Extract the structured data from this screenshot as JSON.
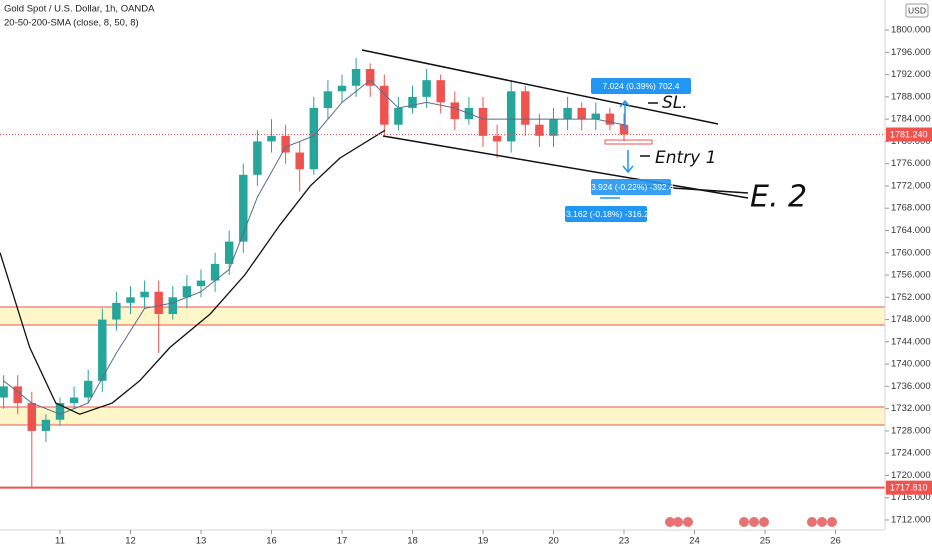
{
  "chart_data": {
    "type": "candlestick",
    "title": "Gold Spot / U.S. Dollar, 1h, OANDA",
    "subtitle": "20-50-200-SMA (close, 8, 50, 8)",
    "currency": "USD",
    "up_color": "#26a69a",
    "down_color": "#ef5350",
    "x": [
      -0.8,
      -0.6,
      -0.4,
      -0.2,
      0,
      0.2,
      0.4,
      0.6,
      0.8,
      1.0,
      1.2,
      1.4,
      1.6,
      1.8,
      2.0,
      2.2,
      2.4,
      2.6,
      2.8,
      3.0,
      3.2,
      3.4,
      3.6,
      3.8,
      4.0,
      4.2,
      4.4,
      4.6,
      4.8,
      5.0,
      5.2,
      5.4,
      5.6,
      5.8,
      6.0,
      6.2,
      6.4,
      6.6,
      6.8,
      7.0,
      7.2,
      7.4,
      7.6,
      7.8,
      8.0
    ],
    "open": [
      1734,
      1736,
      1733,
      1728,
      1730,
      1733,
      1734,
      1737,
      1748,
      1751,
      1752,
      1753,
      1749,
      1752,
      1754,
      1755,
      1758,
      1762,
      1774,
      1780,
      1781,
      1778,
      1775,
      1786,
      1789,
      1790,
      1793,
      1790,
      1783,
      1786,
      1788,
      1791,
      1787,
      1784,
      1786,
      1781,
      1780,
      1789,
      1783,
      1781,
      1784,
      1786,
      1784,
      1785,
      1783
    ],
    "high": [
      1738,
      1738,
      1735,
      1731,
      1734,
      1736,
      1739,
      1750,
      1753,
      1754,
      1755,
      1755,
      1754,
      1756,
      1757,
      1760,
      1764,
      1776,
      1782,
      1784,
      1783,
      1780,
      1788,
      1791,
      1792,
      1795,
      1794,
      1792,
      1788,
      1790,
      1793,
      1792,
      1789,
      1788,
      1788,
      1783,
      1791,
      1790,
      1785,
      1786,
      1788,
      1787,
      1787,
      1786,
      1785
    ],
    "low": [
      1732,
      1731,
      1718,
      1726,
      1729,
      1732,
      1733,
      1735,
      1746,
      1749,
      1750,
      1742,
      1748,
      1750,
      1752,
      1753,
      1756,
      1760,
      1772,
      1778,
      1776,
      1771,
      1774,
      1784,
      1787,
      1788,
      1788,
      1781,
      1782,
      1785,
      1786,
      1785,
      1782,
      1783,
      1779,
      1777,
      1778,
      1781,
      1779,
      1779,
      1782,
      1782,
      1782,
      1782,
      1780
    ],
    "close": [
      1736,
      1733,
      1728,
      1730,
      1733,
      1734,
      1737,
      1748,
      1751,
      1752,
      1753,
      1749,
      1752,
      1754,
      1755,
      1758,
      1762,
      1774,
      1780,
      1781,
      1778,
      1775,
      1786,
      1789,
      1790,
      1793,
      1790,
      1783,
      1786,
      1788,
      1791,
      1787,
      1784,
      1786,
      1781,
      1780,
      1789,
      1783,
      1781,
      1784,
      1786,
      1784,
      1785,
      1783,
      1781.24
    ],
    "overlays": [
      {
        "color": "#5b6b8c",
        "x": [
          -0.8,
          -0.4,
          0,
          0.4,
          0.8,
          1.2,
          1.6,
          2.0,
          2.4,
          2.8,
          3.2,
          3.6,
          4.0,
          4.4,
          4.8,
          5.2,
          5.6,
          6.0,
          6.4,
          6.8,
          7.2,
          7.6,
          8.0
        ],
        "values": [
          1737,
          1733,
          1731,
          1733,
          1742,
          1750,
          1751,
          1753,
          1757,
          1770,
          1779,
          1781,
          1787,
          1791,
          1786,
          1787,
          1786,
          1784,
          1784,
          1784,
          1784,
          1784,
          1783
        ]
      },
      {
        "color": "#111111",
        "x": [
          -0.85,
          -0.43,
          -0.06,
          0.28,
          0.74,
          1.13,
          1.56,
          2.13,
          2.62,
          3.12,
          3.55,
          3.97,
          4.61
        ],
        "values": [
          1760,
          1743,
          1733,
          1731,
          1733,
          1737,
          1743,
          1749,
          1756,
          1765,
          1772,
          1777,
          1782
        ]
      }
    ],
    "price_labels": [
      {
        "value": 1781.24,
        "label": "1781.240"
      },
      {
        "value": 1717.81,
        "label": "1717.810"
      }
    ],
    "measurements": [
      "7.024 (0.39%) 702.4",
      "-3.924 (-0.22%) -392.4",
      "-3.162 (-0.18%) -316.2"
    ],
    "annotations": [
      "SL.",
      "Entry 1",
      "E. 2"
    ],
    "xlim": [
      -0.851,
      11.702
    ],
    "xticks": [
      {
        "value": 0,
        "label": "11"
      },
      {
        "value": 1,
        "label": "12"
      },
      {
        "value": 2,
        "label": "13"
      },
      {
        "value": 3,
        "label": "16"
      },
      {
        "value": 4,
        "label": "17"
      },
      {
        "value": 5,
        "label": "18"
      },
      {
        "value": 6,
        "label": "19"
      },
      {
        "value": 7,
        "label": "20"
      },
      {
        "value": 8,
        "label": "23"
      },
      {
        "value": 9,
        "label": "24"
      },
      {
        "value": 10,
        "label": "25"
      },
      {
        "value": 11,
        "label": "26"
      }
    ],
    "ylim": [
      1710.2,
      1805.4
    ],
    "yticks": [
      {
        "value": 1712,
        "label": "1712.000"
      },
      {
        "value": 1716,
        "label": "1716.000"
      },
      {
        "value": 1720,
        "label": "1720.000"
      },
      {
        "value": 1724,
        "label": "1724.000"
      },
      {
        "value": 1728,
        "label": "1728.000"
      },
      {
        "value": 1732,
        "label": "1732.000"
      },
      {
        "value": 1736,
        "label": "1736.000"
      },
      {
        "value": 1740,
        "label": "1740.000"
      },
      {
        "value": 1744,
        "label": "1744.000"
      },
      {
        "value": 1748,
        "label": "1748.000"
      },
      {
        "value": 1752,
        "label": "1752.000"
      },
      {
        "value": 1756,
        "label": "1756.000"
      },
      {
        "value": 1760,
        "label": "1760.000"
      },
      {
        "value": 1764,
        "label": "1764.000"
      },
      {
        "value": 1768,
        "label": "1768.000"
      },
      {
        "value": 1772,
        "label": "1772.000"
      },
      {
        "value": 1776,
        "label": "1776.000"
      },
      {
        "value": 1780,
        "label": "1780.000"
      },
      {
        "value": 1784,
        "label": "1784.000"
      },
      {
        "value": 1788,
        "label": "1788.000"
      },
      {
        "value": 1792,
        "label": "1792.000"
      },
      {
        "value": 1796,
        "label": "1796.000"
      },
      {
        "value": 1800,
        "label": "1800.000"
      }
    ]
  }
}
